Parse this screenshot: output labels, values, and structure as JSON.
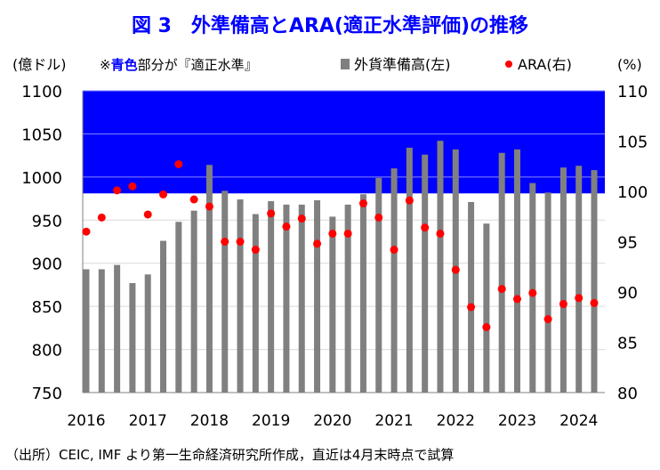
{
  "chart_data": {
    "type": "bar+scatter",
    "title": "図 3　外準備高とARA(適正水準評価)の推移",
    "left_axis_label": "(億ドル)",
    "right_axis_label": "(%)",
    "note_prefix": "※",
    "note_highlight": "青色",
    "note_suffix": "部分が『適正水準』",
    "footnote": "（出所）CEIC, IMF より第一生命経済研究所作成，直近は4月末時点で試算",
    "left_ylim": [
      750,
      1100
    ],
    "left_ticks": [
      "750",
      "800",
      "850",
      "900",
      "950",
      "1000",
      "1050",
      "1100"
    ],
    "right_ylim": [
      80,
      110
    ],
    "right_ticks": [
      "80",
      "85",
      "90",
      "95",
      "100",
      "105",
      "110"
    ],
    "x_tick_labels": [
      "2016",
      "2017",
      "2018",
      "2019",
      "2020",
      "2021",
      "2022",
      "2023",
      "2024"
    ],
    "grid": true,
    "legend_placement": "top",
    "appropriate_band_left_units": [
      981,
      1100
    ],
    "colors": {
      "title": "#0000ff",
      "band": "#0000ff",
      "bars": "#808080",
      "dots": "#ff0000"
    },
    "series": [
      {
        "name": "外貨準備高(左)",
        "type": "bar",
        "axis": "left",
        "values": [
          893,
          893,
          898,
          877,
          887,
          926,
          948,
          961,
          1014,
          984,
          974,
          957,
          972,
          968,
          968,
          973,
          954,
          968,
          980,
          999,
          1010,
          1034,
          1026,
          1042,
          1032,
          971,
          946,
          1028,
          1032,
          993,
          982,
          1011,
          1013,
          1008
        ]
      },
      {
        "name": "ARA(右)",
        "type": "scatter",
        "axis": "right",
        "values": [
          96.0,
          97.4,
          100.1,
          100.5,
          97.7,
          99.7,
          102.7,
          99.2,
          98.5,
          95.0,
          95.0,
          94.2,
          97.8,
          96.5,
          97.3,
          94.8,
          95.8,
          95.8,
          98.8,
          97.4,
          94.2,
          99.1,
          96.4,
          95.8,
          92.2,
          88.5,
          86.5,
          90.3,
          89.3,
          89.9,
          87.3,
          88.8,
          89.4,
          88.9
        ]
      }
    ]
  }
}
